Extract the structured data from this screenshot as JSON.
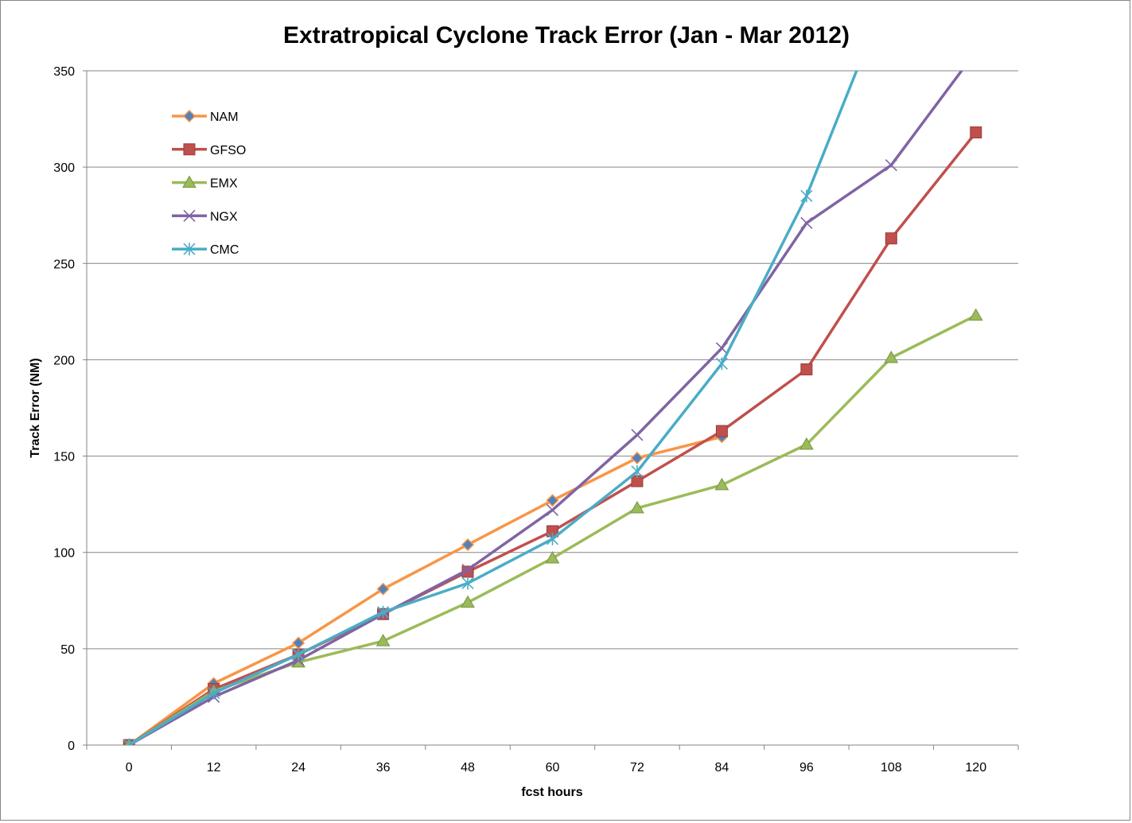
{
  "chart_data": {
    "type": "line",
    "title": "Extratropical Cyclone Track Error (Jan - Mar 2012)",
    "xlabel": "fcst hours",
    "ylabel": "Track Error  (NM)",
    "x": [
      0,
      12,
      24,
      36,
      48,
      60,
      72,
      84,
      96,
      108,
      120
    ],
    "ylim": [
      0,
      350
    ],
    "yticks": [
      0,
      50,
      100,
      150,
      200,
      250,
      300,
      350
    ],
    "grid": "horizontal",
    "legend_position": "top-left",
    "series": [
      {
        "name": "NAM",
        "color": "#F79646",
        "marker": "diamond",
        "values": [
          0,
          32,
          53,
          81,
          104,
          127,
          149,
          160,
          null,
          null,
          null
        ]
      },
      {
        "name": "GFSO",
        "color": "#C0504D",
        "marker": "square",
        "values": [
          0,
          29,
          47,
          68,
          90,
          111,
          137,
          163,
          195,
          263,
          318
        ]
      },
      {
        "name": "EMX",
        "color": "#9BBB59",
        "marker": "triangle",
        "values": [
          0,
          28,
          43,
          54,
          74,
          97,
          123,
          135,
          156,
          201,
          223
        ]
      },
      {
        "name": "NGX",
        "color": "#8064A2",
        "marker": "x",
        "values": [
          0,
          25,
          44,
          68,
          91,
          122,
          161,
          206,
          271,
          301,
          360
        ]
      },
      {
        "name": "CMC",
        "color": "#4BACC6",
        "marker": "star",
        "values": [
          0,
          27,
          47,
          69,
          84,
          107,
          142,
          198,
          285,
          395,
          null
        ]
      }
    ]
  }
}
